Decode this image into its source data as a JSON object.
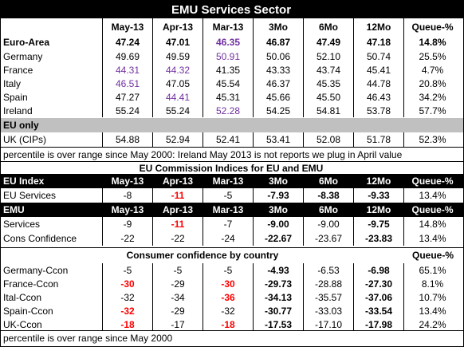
{
  "title": "EMU Services Sector",
  "header": [
    "",
    "May-13",
    "Apr-13",
    "Mar-13",
    "3Mo",
    "6Mo",
    "12Mo",
    "Queue-%"
  ],
  "euro_area": [
    "Euro-Area",
    "47.24",
    "47.01",
    "46.35",
    "46.87",
    "47.49",
    "47.18",
    "14.8%"
  ],
  "rows1": [
    [
      "Germany",
      "49.69",
      "49.59",
      "50.91",
      "50.06",
      "52.10",
      "50.74",
      "25.5%"
    ],
    [
      "France",
      "44.31",
      "44.32",
      "41.35",
      "43.33",
      "43.74",
      "45.41",
      "4.7%"
    ],
    [
      "Italy",
      "46.51",
      "47.05",
      "45.54",
      "46.37",
      "45.35",
      "44.78",
      "20.8%"
    ],
    [
      "Spain",
      "47.27",
      "44.41",
      "45.31",
      "45.66",
      "45.50",
      "46.43",
      "34.2%"
    ],
    [
      "Ireland",
      "55.24",
      "55.24",
      "52.28",
      "54.25",
      "54.81",
      "53.78",
      "57.7%"
    ]
  ],
  "eu_only": "EU only",
  "uk": [
    "UK (CIPs)",
    "54.88",
    "52.94",
    "52.41",
    "53.41",
    "52.08",
    "51.78",
    "52.3%"
  ],
  "note1": "percentile is over range since May 2000: Ireland May 2013 is not reports we plug in April value",
  "section2_title": "EU Commission Indices for EU and EMU",
  "eu_index_header": [
    "EU Index",
    "May-13",
    "Apr-13",
    "Mar-13",
    "3Mo",
    "6Mo",
    "12Mo",
    "Queue-%"
  ],
  "eu_services": [
    "EU Services",
    "-8",
    "-11",
    "-5",
    "-7.93",
    "-8.38",
    "-9.33",
    "13.4%"
  ],
  "emu_header": [
    "EMU",
    "May-13",
    "Apr-13",
    "Mar-13",
    "3Mo",
    "6Mo",
    "12Mo",
    "Queue-%"
  ],
  "emu_services": [
    "Services",
    "-9",
    "-11",
    "-7",
    "-9.00",
    "-9.00",
    "-9.75",
    "14.8%"
  ],
  "cons_conf": [
    "Cons Confidence",
    "-22",
    "-22",
    "-24",
    "-22.67",
    "-23.67",
    "-23.83",
    "13.4%"
  ],
  "section3_title": "Consumer confidence by country",
  "section3_queue": "Queue-%",
  "rows3": [
    [
      "Germany-Ccon",
      "-5",
      "-5",
      "-5",
      "-4.93",
      "-6.53",
      "-6.98",
      "65.1%"
    ],
    [
      "France-Ccon",
      "-30",
      "-29",
      "-30",
      "-29.73",
      "-28.88",
      "-27.30",
      "8.1%"
    ],
    [
      "Ital-Ccon",
      "-32",
      "-34",
      "-36",
      "-34.13",
      "-35.57",
      "-37.06",
      "10.7%"
    ],
    [
      "Spain-Ccon",
      "-32",
      "-29",
      "-32",
      "-30.77",
      "-33.03",
      "-33.54",
      "13.4%"
    ],
    [
      "UK-Ccon",
      "-18",
      "-17",
      "-18",
      "-17.53",
      "-17.10",
      "-17.98",
      "24.2%"
    ]
  ],
  "note2": "percentile is over range since May 2000",
  "colors": {
    "purple": "#7030a0",
    "red": "#ff0000",
    "gray": "#c0c0c0"
  }
}
